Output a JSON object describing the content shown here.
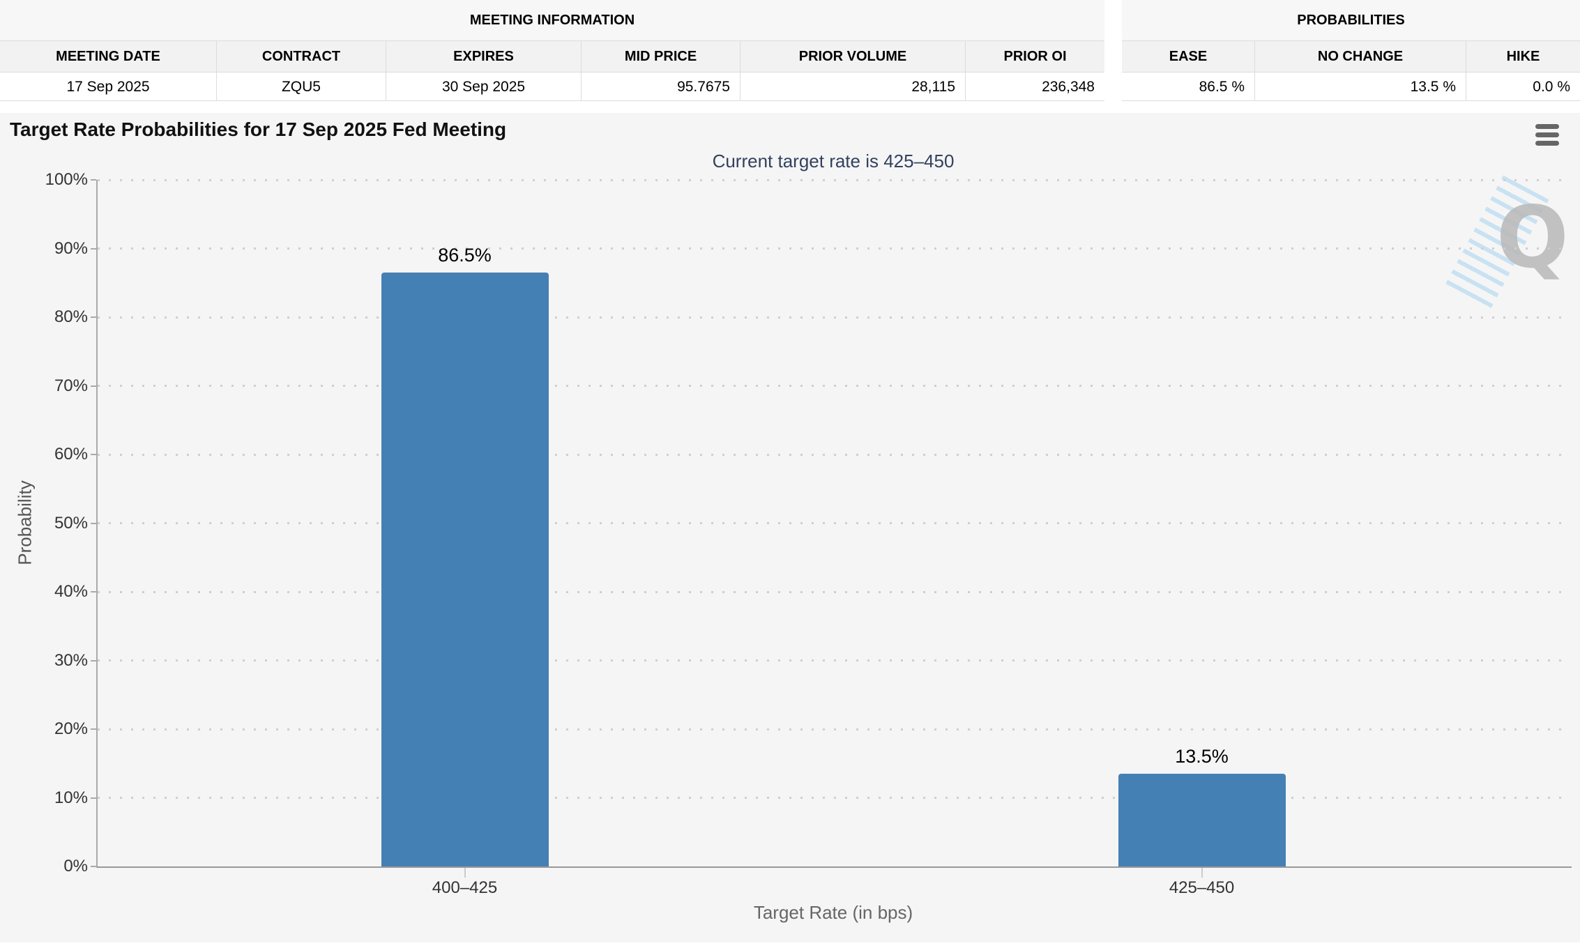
{
  "meeting_information": {
    "title": "MEETING INFORMATION",
    "columns": [
      "MEETING DATE",
      "CONTRACT",
      "EXPIRES",
      "MID PRICE",
      "PRIOR VOLUME",
      "PRIOR OI"
    ],
    "row": [
      "17 Sep 2025",
      "ZQU5",
      "30 Sep 2025",
      "95.7675",
      "28,115",
      "236,348"
    ]
  },
  "probabilities": {
    "title": "PROBABILITIES",
    "columns": [
      "EASE",
      "NO CHANGE",
      "HIKE"
    ],
    "row": [
      "86.5 %",
      "13.5 %",
      "0.0 %"
    ]
  },
  "chart": {
    "context_menu_icon": "hamburger-menu-icon",
    "watermark_letter": "Q"
  },
  "chart_data": {
    "type": "bar",
    "title": "Target Rate Probabilities for 17 Sep 2025 Fed Meeting",
    "subtitle": "Current target rate is 425–450",
    "categories": [
      "400–425",
      "425–450"
    ],
    "values": [
      86.5,
      13.5
    ],
    "data_labels": [
      "86.5%",
      "13.5%"
    ],
    "xlabel": "Target Rate (in bps)",
    "ylabel": "Probability",
    "ylim": [
      0,
      100
    ],
    "ytick_step": 10,
    "yticks": [
      "0%",
      "10%",
      "20%",
      "30%",
      "40%",
      "50%",
      "60%",
      "70%",
      "80%",
      "90%",
      "100%"
    ],
    "grid": "dotted-horizontal",
    "legend": "none",
    "bar_color": "#4580b4"
  },
  "colors": {
    "bar": "#4580b4",
    "chart_background": "#f5f5f5",
    "subtitle_text": "#33415f",
    "axis_title_text": "#666666",
    "tick_text": "#333333",
    "menu_icon": "#666666",
    "watermark_gray": "#b9b9b9",
    "watermark_blue": "#8ec9ee"
  }
}
